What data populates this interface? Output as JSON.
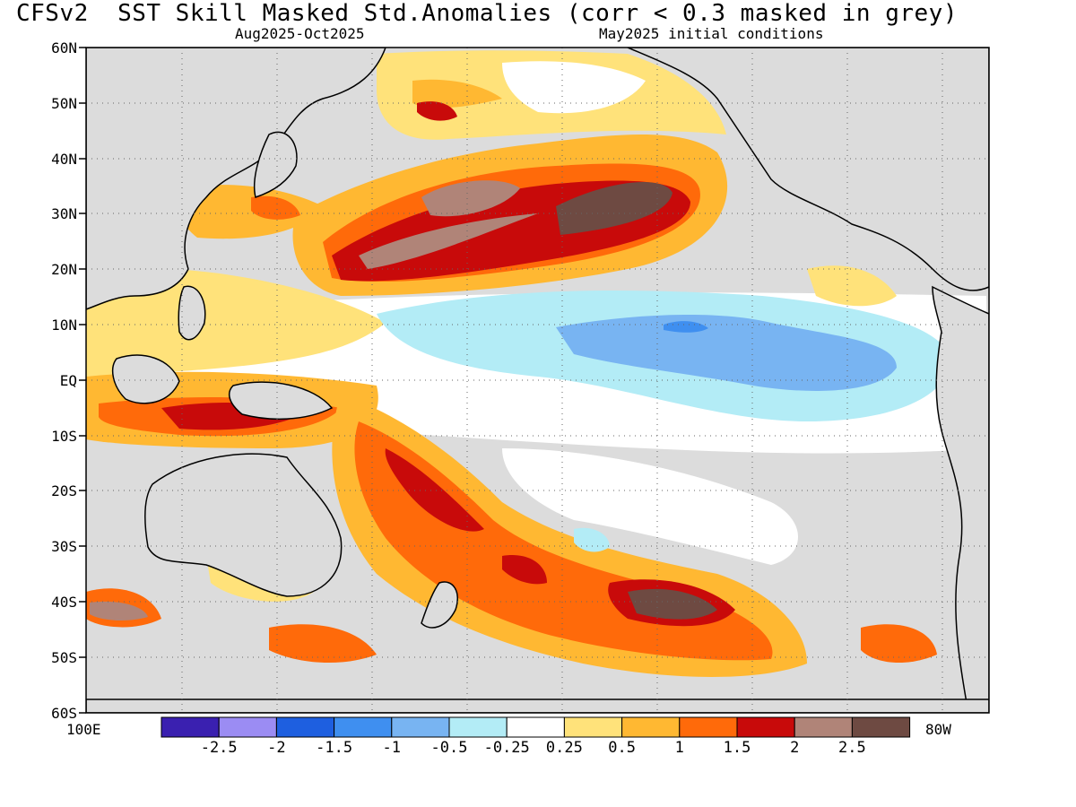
{
  "title": "CFSv2  SST Skill Masked Std.Anomalies (corr < 0.3 masked in grey)",
  "subtitle_left": "Aug2025-Oct2025",
  "subtitle_right": "May2025 initial conditions",
  "lat_labels": [
    "60N",
    "50N",
    "40N",
    "30N",
    "20N",
    "10N",
    "EQ",
    "10S",
    "20S",
    "30S",
    "40S",
    "50S",
    "60S"
  ],
  "lon_label_left": "100E",
  "lon_label_right": "80W",
  "colorbar": {
    "colors": [
      "#3a20b0",
      "#9b8cf3",
      "#1e5fe0",
      "#3f8ff0",
      "#78b4f2",
      "#b3ecf6",
      "#ffffff",
      "#ffe27a",
      "#ffb832",
      "#ff6a0a",
      "#c80a0a",
      "#b08478",
      "#6e4a42"
    ],
    "labels": [
      "-2.5",
      "-2",
      "-1.5",
      "-1",
      "-0.5",
      "-0.25",
      "0.25",
      "0.5",
      "1",
      "1.5",
      "2",
      "2.5"
    ]
  },
  "mask_color": "#dcdcdc"
}
